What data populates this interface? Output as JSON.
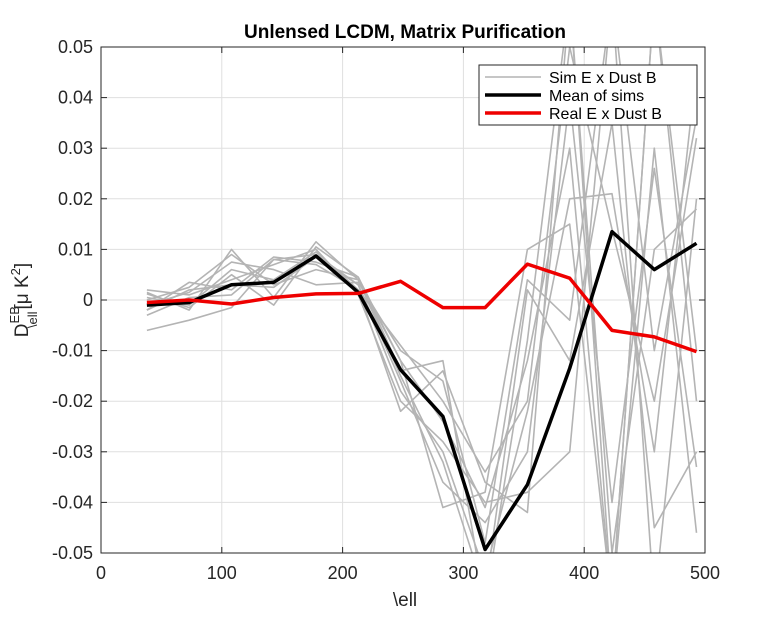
{
  "chart_data": {
    "type": "line",
    "title": "Unlensed LCDM, Matrix Purification",
    "xlabel": "\\ell",
    "ylabel": "D",
    "ylabel_super": "EB",
    "ylabel_sub": "\\ell",
    "ylabel_units": "[μ K",
    "ylabel_units_super": "2",
    "ylabel_units_close": "]",
    "xlim": [
      0,
      500
    ],
    "ylim": [
      -0.05,
      0.05
    ],
    "xticks": [
      0,
      100,
      200,
      300,
      400,
      500
    ],
    "xtick_labels": [
      "0",
      "100",
      "200",
      "300",
      "400",
      "500"
    ],
    "yticks": [
      -0.05,
      -0.04,
      -0.03,
      -0.02,
      -0.01,
      0,
      0.01,
      0.02,
      0.03,
      0.04,
      0.05
    ],
    "ytick_labels": [
      "-0.05",
      "-0.04",
      "-0.03",
      "-0.02",
      "-0.01",
      "0",
      "0.01",
      "0.02",
      "0.03",
      "0.04",
      "0.05"
    ],
    "grid": true,
    "legend_position": "top-right",
    "x": [
      38,
      73,
      108,
      143,
      178,
      213,
      248,
      283,
      318,
      353,
      388,
      423,
      458,
      493
    ],
    "series": [
      {
        "name": "Sim E x Dust B",
        "color": "#b4b4b4",
        "legend": true,
        "values": [
          0.0015,
          -0.002,
          0.01,
          0.0005,
          0.0115,
          0.004,
          -0.012,
          -0.041,
          -0.038,
          0.01,
          0.015,
          -0.06,
          0.03,
          -0.046
        ]
      },
      {
        "name": "",
        "color": "#b4b4b4",
        "legend": false,
        "values": [
          -0.006,
          -0.004,
          -0.0015,
          0.008,
          0.009,
          0.003,
          -0.018,
          -0.03,
          -0.054,
          -0.022,
          0.02,
          0.021,
          -0.03,
          0.046
        ]
      },
      {
        "name": "",
        "color": "#b4b4b4",
        "legend": false,
        "values": [
          -0.002,
          0.0035,
          0.002,
          0.0085,
          0.0075,
          0.0045,
          -0.014,
          -0.012,
          -0.06,
          -0.008,
          0.06,
          -0.06,
          0.06,
          -0.01
        ]
      },
      {
        "name": "",
        "color": "#b4b4b4",
        "legend": false,
        "values": [
          0.0005,
          -0.001,
          0.006,
          0.004,
          0.0095,
          0.002,
          -0.009,
          -0.02,
          -0.034,
          -0.02,
          0.05,
          0.014,
          -0.02,
          0.032
        ]
      },
      {
        "name": "",
        "color": "#b4b4b4",
        "legend": false,
        "values": [
          0.002,
          0.001,
          0.004,
          0.007,
          0.01,
          0.001,
          -0.02,
          -0.028,
          -0.04,
          -0.038,
          -0.03,
          0.06,
          -0.06,
          0.02
        ]
      },
      {
        "name": "",
        "color": "#b4b4b4",
        "legend": false,
        "values": [
          -0.002,
          0.002,
          0.003,
          0.0025,
          0.0085,
          0.003,
          -0.016,
          -0.036,
          -0.044,
          -0.03,
          0.04,
          -0.04,
          0.026,
          -0.033
        ]
      },
      {
        "name": "",
        "color": "#b4b4b4",
        "legend": false,
        "values": [
          -0.001,
          0.0015,
          0.0075,
          0.006,
          0.003,
          0.0035,
          -0.01,
          -0.016,
          -0.048,
          0.004,
          -0.004,
          0.06,
          -0.01,
          0.036
        ]
      },
      {
        "name": "",
        "color": "#b4b4b4",
        "legend": false,
        "values": [
          0.0012,
          -0.0015,
          0.005,
          -0.001,
          0.0105,
          0.0045,
          -0.012,
          -0.024,
          -0.041,
          -0.012,
          0.03,
          -0.06,
          0.06,
          -0.02
        ]
      },
      {
        "name": "",
        "color": "#b4b4b4",
        "legend": false,
        "values": [
          -0.003,
          0.0005,
          0.001,
          0.008,
          0.007,
          0.002,
          -0.022,
          -0.014,
          -0.036,
          -0.042,
          0.06,
          -0.05,
          0.01,
          0.018
        ]
      },
      {
        "name": "",
        "color": "#b4b4b4",
        "legend": false,
        "values": [
          0.0,
          0.0025,
          0.009,
          0.003,
          0.006,
          0.004,
          -0.015,
          -0.032,
          -0.058,
          0.002,
          -0.012,
          0.035,
          -0.045,
          -0.03
        ]
      },
      {
        "name": "Mean of sims",
        "color": "#000000",
        "legend": true,
        "values": [
          -0.001,
          -0.0005,
          0.003,
          0.0035,
          0.0087,
          0.0015,
          -0.0138,
          -0.023,
          -0.0493,
          -0.0365,
          -0.0135,
          0.0135,
          0.006,
          0.0112
        ]
      },
      {
        "name": "Real E x Dust B",
        "color": "#ee0000",
        "legend": true,
        "values": [
          -0.0005,
          0.0,
          -0.0008,
          0.0005,
          0.0012,
          0.0013,
          0.0037,
          -0.0015,
          -0.0015,
          0.0071,
          0.0043,
          -0.006,
          -0.0073,
          -0.0102
        ]
      }
    ]
  }
}
